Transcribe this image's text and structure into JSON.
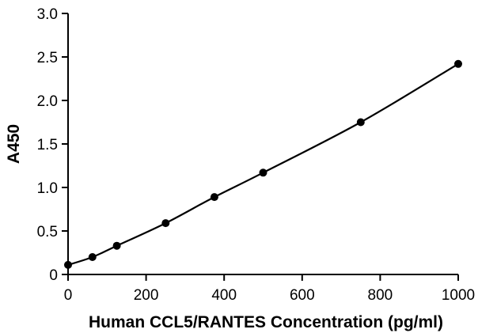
{
  "chart_data": {
    "type": "scatter",
    "xlabel": "Human CCL5/RANTES Concentration (pg/ml)",
    "ylabel": "A450",
    "xlim": [
      0,
      1000
    ],
    "ylim": [
      0,
      3.0
    ],
    "x_ticks": [
      "0",
      "200",
      "400",
      "600",
      "800",
      "1000"
    ],
    "y_ticks": [
      "0",
      "0.5",
      "1.0",
      "1.5",
      "2.0",
      "2.5",
      "3.0"
    ],
    "grid": false,
    "legend": "none",
    "fit_line": true,
    "series": [
      {
        "x": [
          0,
          62.5,
          125,
          250,
          375,
          500,
          750,
          1000
        ],
        "y": [
          0.11,
          0.2,
          0.33,
          0.59,
          0.89,
          1.17,
          1.75,
          2.42
        ]
      }
    ],
    "colors": {
      "marker": "#000000",
      "line": "#000000",
      "axis": "#000000"
    }
  }
}
